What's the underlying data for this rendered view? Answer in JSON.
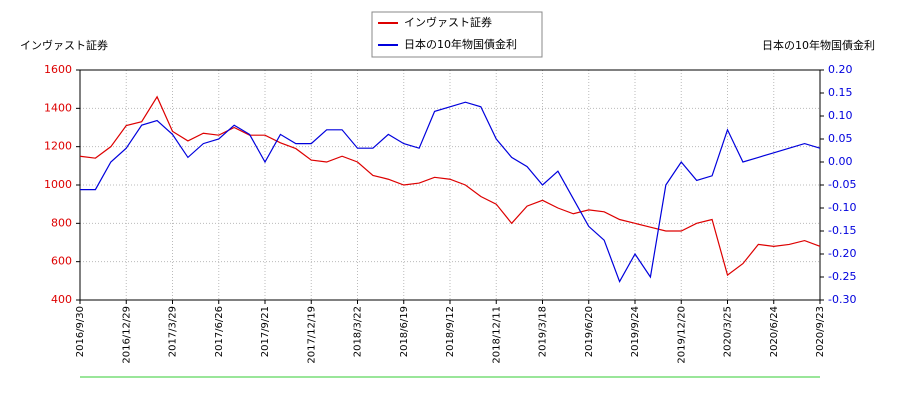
{
  "chart_data": {
    "type": "line",
    "y_label": "インヴァスト証券",
    "y2_label": "日本の10年物国債金利",
    "categories": [
      "2016/9/30",
      null,
      null,
      "2016/12/29",
      null,
      null,
      "2017/3/29",
      null,
      null,
      "2017/6/26",
      null,
      null,
      "2017/9/21",
      null,
      null,
      "2017/12/19",
      null,
      null,
      "2018/3/22",
      null,
      null,
      "2018/6/19",
      null,
      null,
      "2018/9/12",
      null,
      null,
      "2018/12/11",
      null,
      null,
      "2019/3/18",
      null,
      null,
      "2019/6/20",
      null,
      null,
      "2019/9/24",
      null,
      null,
      "2019/12/20",
      null,
      null,
      "2020/3/25",
      null,
      null,
      "2020/6/24",
      null,
      null,
      "2020/9/23"
    ],
    "series": [
      {
        "name": "インヴァスト証券",
        "color": "#dd0000",
        "axis": "y",
        "values": [
          1150,
          1140,
          1200,
          1310,
          1330,
          1460,
          1280,
          1230,
          1270,
          1260,
          1300,
          1260,
          1260,
          1220,
          1190,
          1130,
          1120,
          1150,
          1120,
          1050,
          1030,
          1000,
          1010,
          1040,
          1030,
          1000,
          940,
          900,
          800,
          890,
          920,
          880,
          850,
          870,
          860,
          820,
          800,
          780,
          760,
          760,
          800,
          820,
          530,
          590,
          690,
          680,
          690,
          710,
          680
        ]
      },
      {
        "name": "日本の10年物国債金利",
        "color": "#0000dd",
        "axis": "y2",
        "values": [
          -0.06,
          -0.06,
          0.0,
          0.03,
          0.08,
          0.09,
          0.06,
          0.01,
          0.04,
          0.05,
          0.08,
          0.06,
          0.0,
          0.06,
          0.04,
          0.04,
          0.07,
          0.07,
          0.03,
          0.03,
          0.06,
          0.04,
          0.03,
          0.11,
          0.12,
          0.13,
          0.12,
          0.05,
          0.01,
          -0.01,
          -0.05,
          -0.02,
          -0.08,
          -0.14,
          -0.17,
          -0.26,
          -0.2,
          -0.25,
          -0.05,
          0.0,
          -0.04,
          -0.03,
          0.07,
          0.0,
          0.01,
          0.02,
          0.03,
          0.04,
          0.03
        ]
      }
    ],
    "ylim": [
      400,
      1600
    ],
    "yticks": [
      400,
      600,
      800,
      1000,
      1200,
      1400,
      1600
    ],
    "y2lim": [
      -0.3,
      0.2
    ],
    "y2ticks": [
      {
        "value": -0.3,
        "label": "-0.30"
      },
      {
        "value": -0.25,
        "label": "-0.25"
      },
      {
        "value": -0.2,
        "label": "-0.20"
      },
      {
        "value": -0.15,
        "label": "-0.15"
      },
      {
        "value": -0.1,
        "label": "-0.10"
      },
      {
        "value": -0.05,
        "label": "-0.05"
      },
      {
        "value": 0,
        "label": "0.00"
      },
      {
        "value": 0.05,
        "label": "0.05"
      },
      {
        "value": 0.1,
        "label": "0.10"
      },
      {
        "value": 0.15,
        "label": "0.15"
      },
      {
        "value": 0.2,
        "label": "0.20"
      }
    ],
    "grid": true
  }
}
